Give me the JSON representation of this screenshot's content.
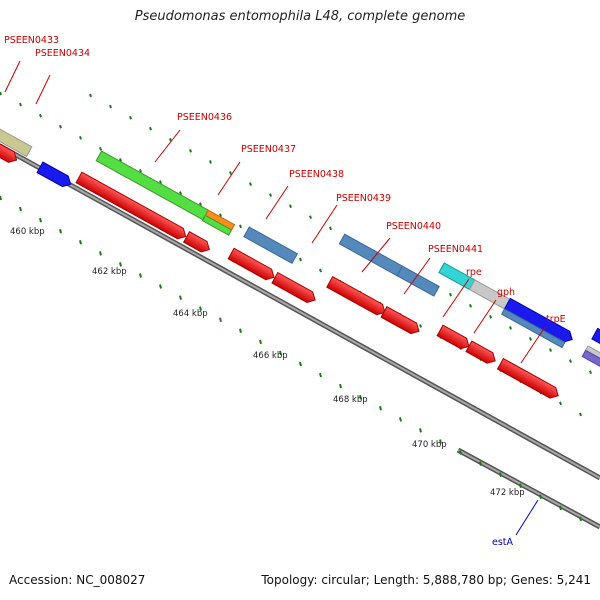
{
  "title": "Pseudomonas entomophila L48, complete genome",
  "footer": {
    "accession": "Accession: NC_008027",
    "topology": "Topology: circular; Length: 5,888,780 bp; Genes: 5,241"
  },
  "tick_labels": [
    "460 kbp",
    "462 kbp",
    "464 kbp",
    "466 kbp",
    "468 kbp",
    "470 kbp",
    "472 kbp"
  ],
  "gene_labels": [
    {
      "name": "PSEEN0433",
      "color": "#cc0000"
    },
    {
      "name": "PSEEN0434",
      "color": "#cc0000"
    },
    {
      "name": "PSEEN0436",
      "color": "#cc0000"
    },
    {
      "name": "PSEEN0437",
      "color": "#cc0000"
    },
    {
      "name": "PSEEN0438",
      "color": "#cc0000"
    },
    {
      "name": "PSEEN0439",
      "color": "#cc0000"
    },
    {
      "name": "PSEEN0440",
      "color": "#cc0000"
    },
    {
      "name": "PSEEN0441",
      "color": "#cc0000"
    },
    {
      "name": "rpe",
      "color": "#cc0000"
    },
    {
      "name": "gph",
      "color": "#cc0000"
    },
    {
      "name": "trpE",
      "color": "#cc0000"
    },
    {
      "name": "estA",
      "color": "#0000cc"
    }
  ],
  "colors": {
    "backbone": "#808080",
    "cds": "#ff1a1a",
    "tick": "#1a7a1a"
  }
}
